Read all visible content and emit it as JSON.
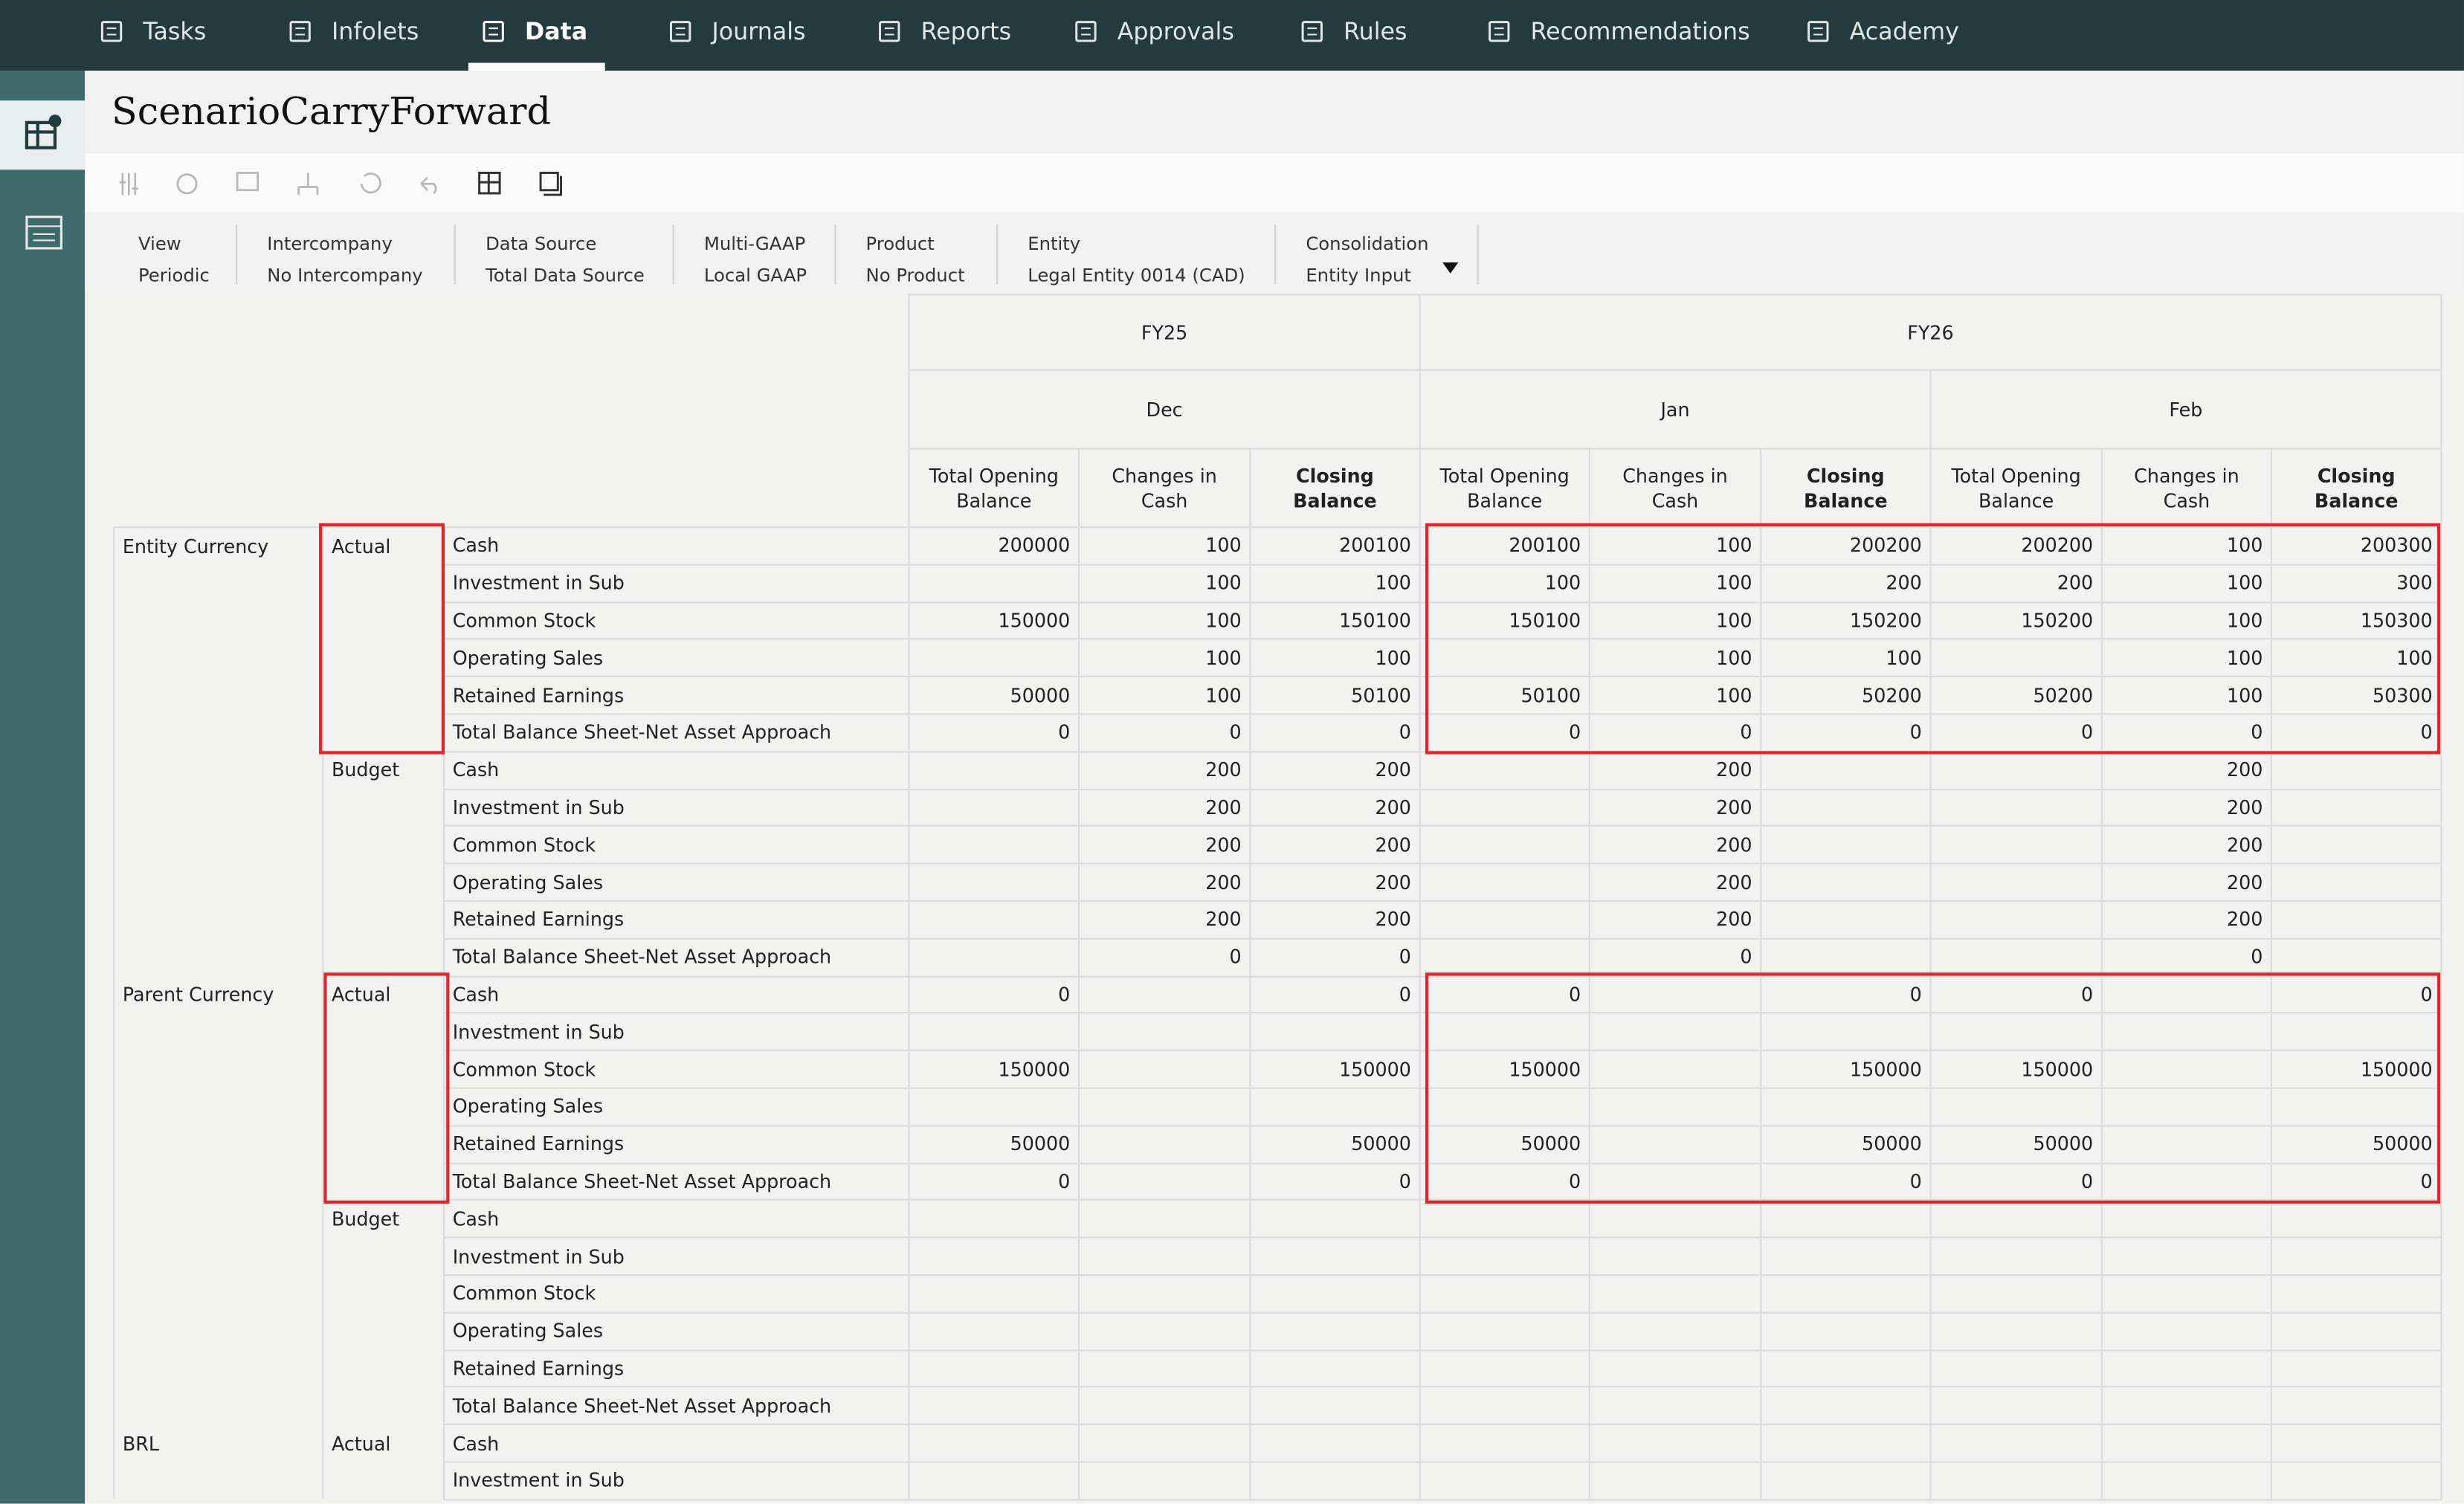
{
  "nav": {
    "tabs": [
      "Tasks",
      "Infolets",
      "Data",
      "Journals",
      "Reports",
      "Approvals",
      "Rules",
      "Recommendations",
      "Academy"
    ],
    "active": "Data"
  },
  "header": {
    "title": "ScenarioCarryForward"
  },
  "filters": [
    {
      "label": "View",
      "value": "Periodic"
    },
    {
      "label": "Intercompany",
      "value": "No Intercompany"
    },
    {
      "label": "Data Source",
      "value": "Total Data Source"
    },
    {
      "label": "Multi-GAAP",
      "value": "Local GAAP"
    },
    {
      "label": "Product",
      "value": "No Product"
    },
    {
      "label": "Entity",
      "value": "Legal Entity 0014 (CAD)"
    },
    {
      "label": "Consolidation",
      "value": "Entity Input"
    }
  ],
  "table": {
    "years": [
      {
        "name": "FY25",
        "months": [
          {
            "name": "Dec",
            "columns": [
              "Total Opening Balance",
              "Changes in Cash",
              "Closing Balance"
            ]
          }
        ]
      },
      {
        "name": "FY26",
        "months": [
          {
            "name": "Jan",
            "columns": [
              "Total Opening Balance",
              "Changes in Cash",
              "Closing Balance"
            ]
          },
          {
            "name": "Feb",
            "columns": [
              "Total Opening Balance",
              "Changes in Cash",
              "Closing Balance"
            ]
          }
        ]
      }
    ],
    "sections": [
      {
        "currency": "Entity Currency",
        "scenarios": [
          {
            "name": "Actual",
            "rows": [
              {
                "account": "Cash",
                "cells": [
                  200000,
                  100,
                  200100,
                  200100,
                  100,
                  200200,
                  200200,
                  100,
                  200300
                ]
              },
              {
                "account": "Investment in Sub",
                "cells": [
                  null,
                  100,
                  100,
                  100,
                  100,
                  200,
                  200,
                  100,
                  300
                ]
              },
              {
                "account": "Common Stock",
                "cells": [
                  150000,
                  100,
                  150100,
                  150100,
                  100,
                  150200,
                  150200,
                  100,
                  150300
                ]
              },
              {
                "account": "Operating Sales",
                "cells": [
                  null,
                  100,
                  100,
                  null,
                  100,
                  100,
                  null,
                  100,
                  100
                ]
              },
              {
                "account": "Retained Earnings",
                "cells": [
                  50000,
                  100,
                  50100,
                  50100,
                  100,
                  50200,
                  50200,
                  100,
                  50300
                ]
              },
              {
                "account": "Total Balance Sheet-Net Asset Approach",
                "cells": [
                  0,
                  0,
                  0,
                  0,
                  0,
                  0,
                  0,
                  0,
                  0
                ]
              }
            ]
          },
          {
            "name": "Budget",
            "rows": [
              {
                "account": "Cash",
                "cells": [
                  null,
                  200,
                  200,
                  null,
                  200,
                  null,
                  null,
                  200,
                  null
                ]
              },
              {
                "account": "Investment in Sub",
                "cells": [
                  null,
                  200,
                  200,
                  null,
                  200,
                  null,
                  null,
                  200,
                  null
                ]
              },
              {
                "account": "Common Stock",
                "cells": [
                  null,
                  200,
                  200,
                  null,
                  200,
                  null,
                  null,
                  200,
                  null
                ]
              },
              {
                "account": "Operating Sales",
                "cells": [
                  null,
                  200,
                  200,
                  null,
                  200,
                  null,
                  null,
                  200,
                  null
                ]
              },
              {
                "account": "Retained Earnings",
                "cells": [
                  null,
                  200,
                  200,
                  null,
                  200,
                  null,
                  null,
                  200,
                  null
                ]
              },
              {
                "account": "Total Balance Sheet-Net Asset Approach",
                "cells": [
                  null,
                  0,
                  0,
                  null,
                  0,
                  null,
                  null,
                  0,
                  null
                ]
              }
            ]
          }
        ]
      },
      {
        "currency": "Parent Currency",
        "scenarios": [
          {
            "name": "Actual",
            "rows": [
              {
                "account": "Cash",
                "cells": [
                  0,
                  null,
                  0,
                  0,
                  null,
                  0,
                  0,
                  null,
                  0
                ]
              },
              {
                "account": "Investment in Sub",
                "cells": [
                  null,
                  null,
                  null,
                  null,
                  null,
                  null,
                  null,
                  null,
                  null
                ]
              },
              {
                "account": "Common Stock",
                "cells": [
                  150000,
                  null,
                  150000,
                  150000,
                  null,
                  150000,
                  150000,
                  null,
                  150000
                ]
              },
              {
                "account": "Operating Sales",
                "cells": [
                  null,
                  null,
                  null,
                  null,
                  null,
                  null,
                  null,
                  null,
                  null
                ]
              },
              {
                "account": "Retained Earnings",
                "cells": [
                  50000,
                  null,
                  50000,
                  50000,
                  null,
                  50000,
                  50000,
                  null,
                  50000
                ]
              },
              {
                "account": "Total Balance Sheet-Net Asset Approach",
                "cells": [
                  0,
                  null,
                  0,
                  0,
                  null,
                  0,
                  0,
                  null,
                  0
                ]
              }
            ]
          },
          {
            "name": "Budget",
            "rows": [
              {
                "account": "Cash",
                "cells": [
                  null,
                  null,
                  null,
                  null,
                  null,
                  null,
                  null,
                  null,
                  null
                ]
              },
              {
                "account": "Investment in Sub",
                "cells": [
                  null,
                  null,
                  null,
                  null,
                  null,
                  null,
                  null,
                  null,
                  null
                ]
              },
              {
                "account": "Common Stock",
                "cells": [
                  null,
                  null,
                  null,
                  null,
                  null,
                  null,
                  null,
                  null,
                  null
                ]
              },
              {
                "account": "Operating Sales",
                "cells": [
                  null,
                  null,
                  null,
                  null,
                  null,
                  null,
                  null,
                  null,
                  null
                ]
              },
              {
                "account": "Retained Earnings",
                "cells": [
                  null,
                  null,
                  null,
                  null,
                  null,
                  null,
                  null,
                  null,
                  null
                ]
              },
              {
                "account": "Total Balance Sheet-Net Asset Approach",
                "cells": [
                  null,
                  null,
                  null,
                  null,
                  null,
                  null,
                  null,
                  null,
                  null
                ]
              }
            ]
          }
        ]
      },
      {
        "currency": "BRL",
        "scenarios": [
          {
            "name": "Actual",
            "rows": [
              {
                "account": "Cash",
                "cells": [
                  null,
                  null,
                  null,
                  null,
                  null,
                  null,
                  null,
                  null,
                  null
                ]
              },
              {
                "account": "Investment in Sub",
                "cells": [
                  null,
                  null,
                  null,
                  null,
                  null,
                  null,
                  null,
                  null,
                  null
                ]
              }
            ]
          }
        ]
      }
    ]
  }
}
